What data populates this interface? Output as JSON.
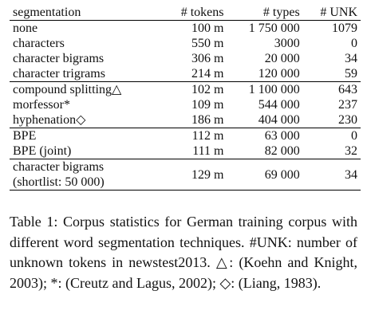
{
  "table": {
    "columns": [
      "segmentation",
      "# tokens",
      "# types",
      "# UNK"
    ],
    "groups": [
      [
        [
          "none",
          "100 m",
          "1 750 000",
          "1079"
        ],
        [
          "characters",
          "550 m",
          "3000",
          "0"
        ],
        [
          "character bigrams",
          "306 m",
          "20 000",
          "34"
        ],
        [
          "character trigrams",
          "214 m",
          "120 000",
          "59"
        ]
      ],
      [
        [
          "compound splitting△",
          "102 m",
          "1 100 000",
          "643"
        ],
        [
          "morfessor*",
          "109 m",
          "544 000",
          "237"
        ],
        [
          "hyphenation◇",
          "186 m",
          "404 000",
          "230"
        ]
      ],
      [
        [
          "BPE",
          "112 m",
          "63 000",
          "0"
        ],
        [
          "BPE (joint)",
          "111 m",
          "82 000",
          "32"
        ]
      ],
      [
        [
          "character bigrams\n(shortlist: 50 000)",
          "129 m",
          "69 000",
          "34"
        ]
      ]
    ]
  },
  "caption": "Table 1: Corpus statistics for German training corpus with different word segmentation techniques. #UNK: number of unknown tokens in newstest2013. △: (Koehn and Knight, 2003); *: (Creutz and Lagus, 2002); ◇: (Liang, 1983)."
}
